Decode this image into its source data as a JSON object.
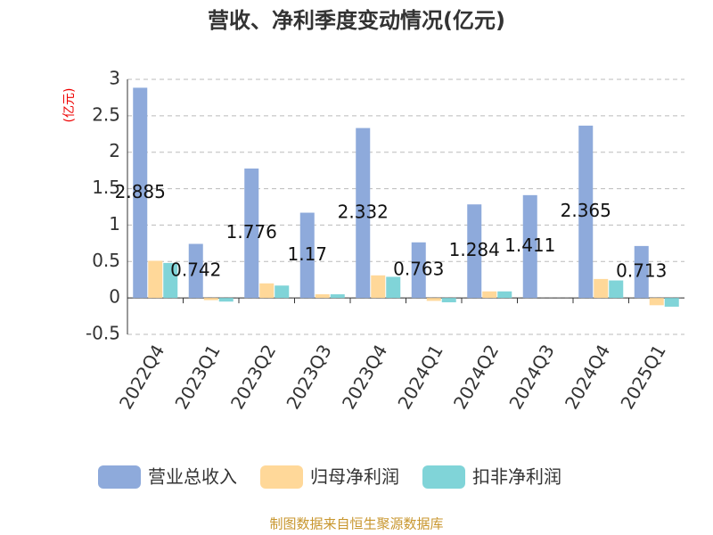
{
  "chart_data": {
    "type": "bar",
    "title": "营收、净利季度变动情况(亿元)",
    "y_label": "(亿元)",
    "source": "制图数据来自恒生聚源数据库",
    "categories": [
      "2022Q4",
      "2023Q1",
      "2023Q2",
      "2023Q3",
      "2023Q4",
      "2024Q1",
      "2024Q2",
      "2024Q3",
      "2024Q4",
      "2025Q1"
    ],
    "series": [
      {
        "name": "营业总收入",
        "color": "#8eaadb",
        "values": [
          2.885,
          0.742,
          1.776,
          1.17,
          2.332,
          0.763,
          1.284,
          1.411,
          2.365,
          0.713
        ],
        "show_labels": true
      },
      {
        "name": "归母净利润",
        "color": "#ffd899",
        "values": [
          0.51,
          -0.03,
          0.2,
          0.05,
          0.31,
          -0.04,
          0.09,
          null,
          0.26,
          -0.1
        ]
      },
      {
        "name": "扣非净利润",
        "color": "#80d4d8",
        "values": [
          0.48,
          -0.05,
          0.17,
          0.05,
          0.29,
          -0.06,
          0.09,
          null,
          0.24,
          -0.12
        ]
      }
    ],
    "ylim": [
      -0.5,
      3
    ],
    "yticks": [
      -0.5,
      0,
      0.5,
      1,
      1.5,
      2,
      2.5,
      3
    ],
    "grid": true,
    "legend": "bottom"
  }
}
